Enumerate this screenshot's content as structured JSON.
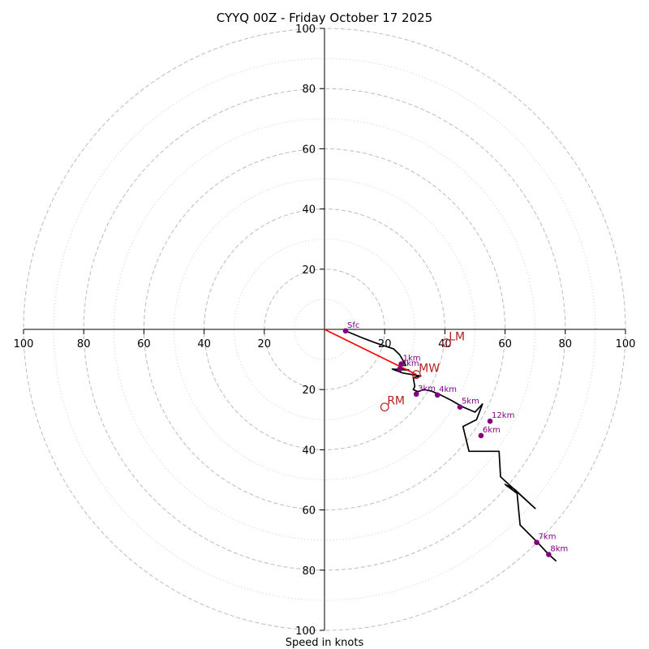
{
  "chart_data": {
    "type": "hodograph",
    "title": "CYYQ 00Z - Friday October 17 2025",
    "xlabel": "Speed in knots",
    "range": [
      -100,
      100
    ],
    "ring_labels": [
      "20",
      "40",
      "60",
      "80",
      "100",
      "20",
      "40",
      "60",
      "80",
      "100",
      "20",
      "40",
      "60",
      "80",
      "100",
      "20",
      "40",
      "60",
      "80",
      "100"
    ],
    "ring_values": [
      20,
      40,
      60,
      80,
      100
    ],
    "minor_ring_values": [
      10,
      30,
      50,
      70,
      90
    ],
    "colors": {
      "trace": "#000000",
      "height_point": "#800080",
      "storm_vector": "#ff0000",
      "storm_marker": "#b22222",
      "grid_major": "#bbbbbb",
      "grid_minor": "#cccccc"
    },
    "trace": [
      [
        7,
        -0.5
      ],
      [
        13,
        -3
      ],
      [
        17,
        -4.5
      ],
      [
        20,
        -5.5
      ],
      [
        23,
        -6.5
      ],
      [
        25,
        -8.5
      ],
      [
        26.5,
        -11
      ],
      [
        27,
        -12
      ],
      [
        25,
        -12
      ],
      [
        25.5,
        -13
      ],
      [
        28,
        -13.5
      ],
      [
        22.5,
        -13.2
      ],
      [
        26,
        -14.5
      ],
      [
        32,
        -15.5
      ],
      [
        29.5,
        -16
      ],
      [
        30,
        -19
      ],
      [
        29.5,
        -20
      ],
      [
        31,
        -20.7
      ],
      [
        33,
        -20
      ],
      [
        35.5,
        -20.5
      ],
      [
        38,
        -21.5
      ],
      [
        42,
        -23.5
      ],
      [
        46,
        -25.8
      ],
      [
        50,
        -27.5
      ],
      [
        52.5,
        -24.8
      ],
      [
        50.5,
        -30
      ],
      [
        46,
        -32.3
      ],
      [
        48,
        -40.5
      ],
      [
        58,
        -40.5
      ],
      [
        58.5,
        -49
      ],
      [
        70,
        -59.5
      ],
      [
        63,
        -53
      ],
      [
        60,
        -51.5
      ],
      [
        64,
        -54.5
      ],
      [
        65,
        -65
      ],
      [
        70.5,
        -70.5
      ],
      [
        74.5,
        -74.8
      ],
      [
        77,
        -77
      ]
    ],
    "height_points": [
      {
        "label": "Sfc",
        "u": 7,
        "v": -0.5
      },
      {
        "label": "1km",
        "u": 25.5,
        "v": -11.5
      },
      {
        "label": "2km",
        "u": 25,
        "v": -13.2
      },
      {
        "label": "3km",
        "u": 30.5,
        "v": -21.5
      },
      {
        "label": "4km",
        "u": 37.5,
        "v": -21.8
      },
      {
        "label": "5km",
        "u": 45,
        "v": -25.8
      },
      {
        "label": "6km",
        "u": 52,
        "v": -35.3
      },
      {
        "label": "7km",
        "u": 70.5,
        "v": -70.8
      },
      {
        "label": "8km",
        "u": 74.5,
        "v": -74.8
      },
      {
        "label": "12km",
        "u": 55,
        "v": -30.5
      }
    ],
    "storm_motion": [
      {
        "label": "LM",
        "u": 40.5,
        "v": -4.5
      },
      {
        "label": "MW",
        "u": 30.5,
        "v": -15
      },
      {
        "label": "RM",
        "u": 20,
        "v": -25.8
      }
    ],
    "storm_vector": {
      "from": [
        0,
        0
      ],
      "to": [
        30.5,
        -15
      ]
    }
  }
}
